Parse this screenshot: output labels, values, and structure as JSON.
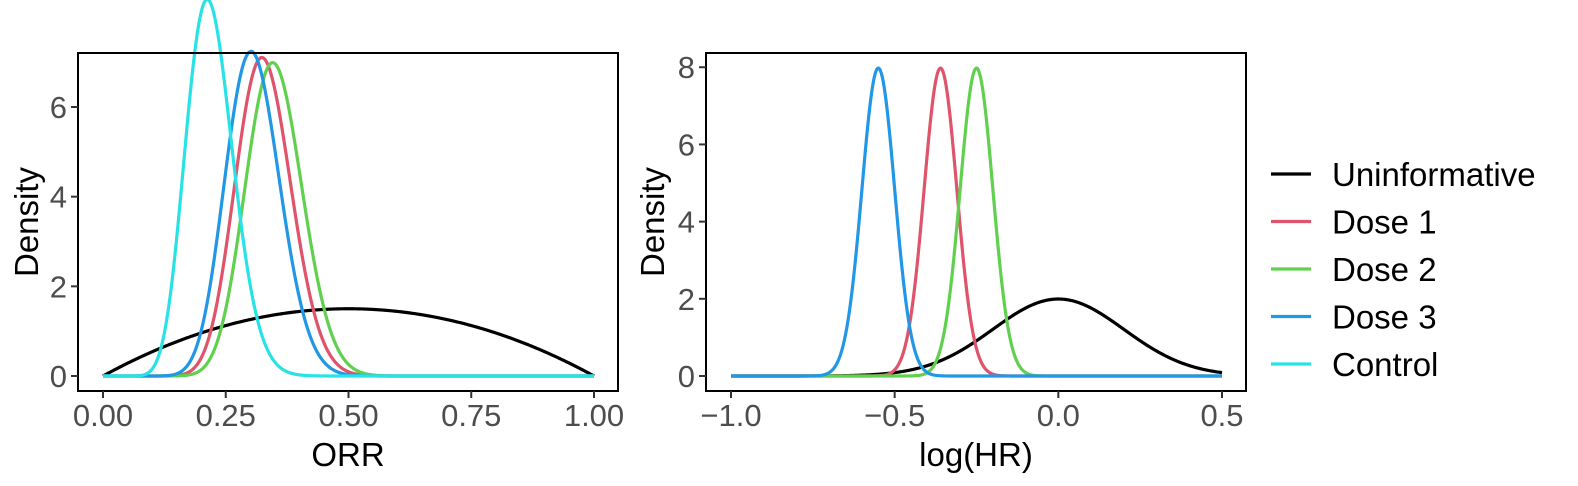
{
  "legend": {
    "placement": "right",
    "entries": [
      {
        "name": "Uninformative",
        "color": "#000000"
      },
      {
        "name": "Dose 1",
        "color": "#DF536B"
      },
      {
        "name": "Dose 2",
        "color": "#61D04F"
      },
      {
        "name": "Dose 3",
        "color": "#2297E6"
      },
      {
        "name": "Control",
        "color": "#28E2E5"
      }
    ]
  },
  "chart_data": [
    {
      "type": "line",
      "xlabel": "ORR",
      "ylabel": "Density",
      "xlim": [
        0,
        1
      ],
      "ylim": [
        0,
        7
      ],
      "xticks": [
        0,
        0.25,
        0.5,
        0.75,
        1
      ],
      "xtick_labels": [
        "0.00",
        "0.25",
        "0.50",
        "0.75",
        "1.00"
      ],
      "yticks": [
        0,
        2,
        4,
        6
      ],
      "ytick_labels": [
        "0",
        "2",
        "4",
        "6"
      ],
      "grid": false,
      "series": [
        {
          "name": "Uninformative",
          "color": "#000000",
          "distribution": "beta",
          "params": [
            2,
            2
          ]
        },
        {
          "name": "Dose 1",
          "color": "#DF536B",
          "distribution": "beta",
          "params": [
            23,
            47
          ]
        },
        {
          "name": "Dose 2",
          "color": "#61D04F",
          "distribution": "beta",
          "params": [
            24.5,
            45.5
          ]
        },
        {
          "name": "Dose 3",
          "color": "#2297E6",
          "distribution": "beta",
          "params": [
            21.5,
            48.5
          ]
        },
        {
          "name": "Control",
          "color": "#28E2E5",
          "distribution": "beta",
          "params": [
            16.5,
            58.5
          ]
        }
      ]
    },
    {
      "type": "line",
      "xlabel": "log(HR)",
      "ylabel": "Density",
      "xlim": [
        -1,
        0.5
      ],
      "ylim": [
        0,
        8.2
      ],
      "xticks": [
        -1,
        -0.5,
        0,
        0.5
      ],
      "xtick_labels": [
        "−1.0",
        "−0.5",
        "0.0",
        "0.5"
      ],
      "yticks": [
        0,
        2,
        4,
        6,
        8
      ],
      "ytick_labels": [
        "0",
        "2",
        "4",
        "6",
        "8"
      ],
      "grid": false,
      "series": [
        {
          "name": "Uninformative",
          "color": "#000000",
          "distribution": "normal",
          "params": [
            0,
            0.2
          ]
        },
        {
          "name": "Dose 1",
          "color": "#DF536B",
          "distribution": "normal",
          "params": [
            -0.36,
            0.05
          ]
        },
        {
          "name": "Dose 2",
          "color": "#61D04F",
          "distribution": "normal",
          "params": [
            -0.25,
            0.05
          ]
        },
        {
          "name": "Dose 3",
          "color": "#2297E6",
          "distribution": "normal",
          "params": [
            -0.55,
            0.05
          ]
        }
      ]
    }
  ]
}
